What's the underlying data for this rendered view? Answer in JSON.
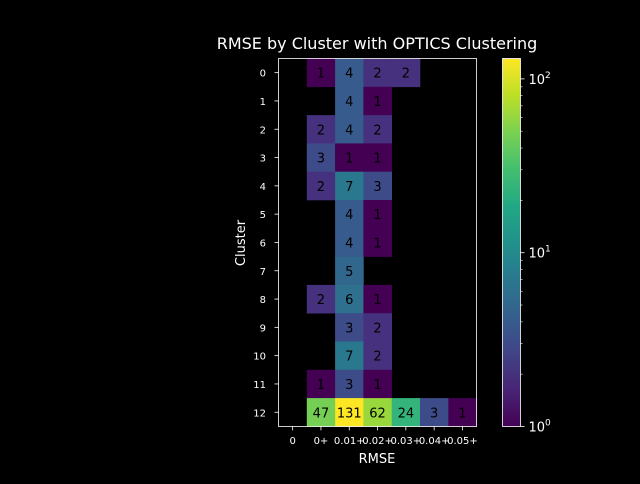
{
  "chart_data": {
    "type": "heatmap",
    "title": "RMSE by Cluster with OPTICS Clustering",
    "xlabel": "RMSE",
    "ylabel": "Cluster",
    "x_categories": [
      "0",
      "0+",
      "0.01+",
      "0.02+",
      "0.03+",
      "0.04+",
      "0.05+"
    ],
    "y_categories": [
      "0",
      "1",
      "2",
      "3",
      "4",
      "5",
      "6",
      "7",
      "8",
      "9",
      "10",
      "11",
      "12"
    ],
    "values": [
      [
        null,
        1,
        4,
        2,
        2,
        null,
        null
      ],
      [
        null,
        null,
        4,
        1,
        null,
        null,
        null
      ],
      [
        null,
        2,
        4,
        2,
        null,
        null,
        null
      ],
      [
        null,
        3,
        1,
        1,
        null,
        null,
        null
      ],
      [
        null,
        2,
        7,
        3,
        null,
        null,
        null
      ],
      [
        null,
        null,
        4,
        1,
        null,
        null,
        null
      ],
      [
        null,
        null,
        4,
        1,
        null,
        null,
        null
      ],
      [
        null,
        null,
        5,
        null,
        null,
        null,
        null
      ],
      [
        null,
        2,
        6,
        1,
        null,
        null,
        null
      ],
      [
        null,
        null,
        3,
        2,
        null,
        null,
        null
      ],
      [
        null,
        null,
        7,
        2,
        null,
        null,
        null
      ],
      [
        null,
        1,
        3,
        1,
        null,
        null,
        null
      ],
      [
        null,
        47,
        131,
        62,
        24,
        3,
        1
      ]
    ],
    "colorbar": {
      "scale": "log",
      "range": [
        1,
        131
      ],
      "colormap": "viridis",
      "ticks": [
        {
          "value": 1,
          "base": "10",
          "exp": "0"
        },
        {
          "value": 10,
          "base": "10",
          "exp": "1"
        },
        {
          "value": 100,
          "base": "10",
          "exp": "2"
        }
      ]
    },
    "background_color": "#000000",
    "text_color": "#ffffff",
    "annotation_color": "#000000",
    "grid": false
  }
}
